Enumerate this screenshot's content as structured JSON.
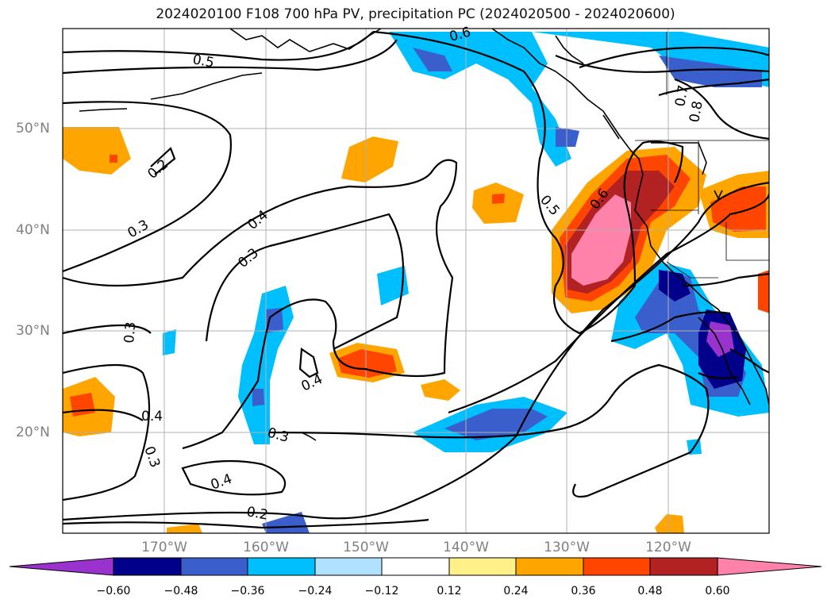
{
  "title": "2024020100 F108 700 hPa PV, precipitation PC (2024020500 - 2024020600)",
  "lat_labels": [
    "50°N",
    "40°N",
    "30°N",
    "20°N"
  ],
  "lon_labels": [
    "170°W",
    "160°W",
    "150°W",
    "140°W",
    "130°W",
    "120°W"
  ],
  "contour_labels": [
    "0.5",
    "0.6",
    "0.2",
    "0.3",
    "0.4",
    "0.3",
    "0.5",
    "0.6",
    "0.8",
    "0.3",
    "0.4",
    "0.4",
    "0.3",
    "0.3",
    "0.4",
    "0.2",
    "0.7"
  ],
  "colorbar": {
    "ticks": [
      "−0.60",
      "−0.48",
      "−0.36",
      "−0.24",
      "−0.12",
      "0.12",
      "0.24",
      "0.36",
      "0.48",
      "0.60"
    ],
    "colors": [
      "#9a32cd",
      "#00008b",
      "#3a5fcd",
      "#00bfff",
      "#b0e2ff",
      "#ffffff",
      "#fff08a",
      "#ffa500",
      "#ff4500",
      "#b22222",
      "#ff82ab"
    ]
  },
  "colors": {
    "land": "#000000",
    "grid": "#b0b0b0",
    "contour": "#000000"
  }
}
